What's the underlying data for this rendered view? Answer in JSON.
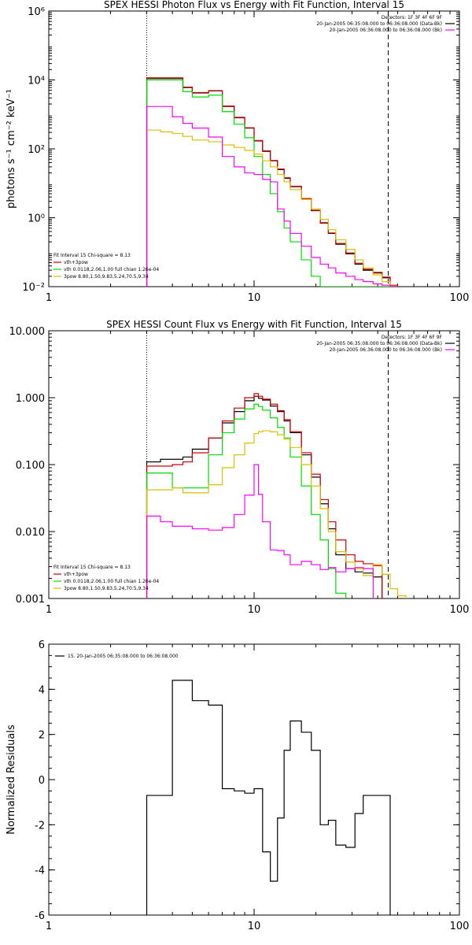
{
  "colors": {
    "data": "#000000",
    "model": "#d40000",
    "thermal": "#00dd00",
    "power": "#dcbf00",
    "background": "#ff00ff"
  },
  "chart_data": [
    {
      "type": "line",
      "title": "SPEX HESSI Photon Flux vs Energy with Fit Function, Interval 15",
      "xlabel": "",
      "ylabel": "photons s⁻¹ cm⁻² keV⁻¹",
      "xscale": "log",
      "yscale": "log",
      "xlim": [
        1,
        100
      ],
      "ylim": [
        0.01,
        1000000
      ],
      "xticks": [
        {
          "v": 1,
          "label": "1"
        },
        {
          "v": 10,
          "label": "10"
        },
        {
          "v": 100,
          "label": "100"
        }
      ],
      "yticks": [
        {
          "v": 0.01,
          "label": "10⁻²"
        },
        {
          "v": 1,
          "label": "10⁰"
        },
        {
          "v": 100,
          "label": "10²"
        },
        {
          "v": 10000,
          "label": "10⁴"
        },
        {
          "v": 1000000,
          "label": "10⁶"
        }
      ],
      "vlines": [
        {
          "x": 3,
          "style": "dotted"
        },
        {
          "x": 45,
          "style": "dashed"
        }
      ],
      "legend_right": [
        "Detectors: 1F 3F 4F 6F 9F",
        "20-Jan-2005 06:35:08.000 to 06:36:08.000 (Data-Bk)",
        "20-Jan-2005 06:36:08.000 to 06:36:08.000 (Bk)"
      ],
      "legend_left": [
        "Fit Interval 15   Chi-square = 8.13",
        "vth+3pow",
        "vth 0.0118,2.06,1.00  full chian 1.26e-04",
        "3pow 8.80,1.50,9.83,5.24,70.5,9.34"
      ],
      "edges": [
        3,
        3.5,
        4,
        4.5,
        5,
        6,
        7,
        8,
        9,
        10,
        11,
        12,
        13,
        14,
        15,
        17,
        19,
        21,
        23,
        25,
        28,
        31,
        34,
        38,
        42,
        46,
        50
      ],
      "series": [
        {
          "name": "data",
          "color": "#000000",
          "values": [
            11000,
            11000,
            11000,
            6000,
            4200,
            4800,
            1700,
            800,
            400,
            170,
            85,
            45,
            25,
            14,
            8,
            3.5,
            1.6,
            0.7,
            0.35,
            0.17,
            0.09,
            0.045,
            0.03,
            0.025,
            0.018,
            0.01
          ]
        },
        {
          "name": "vth+3pow",
          "color": "#d40000",
          "values": [
            11500,
            11500,
            11500,
            6200,
            4300,
            4900,
            1750,
            820,
            410,
            175,
            88,
            46,
            26,
            14.5,
            8.2,
            3.6,
            1.65,
            0.72,
            0.36,
            0.18,
            0.095,
            0.048,
            0.032,
            0.026,
            0.019,
            0.011
          ]
        },
        {
          "name": "vth",
          "color": "#00dd00",
          "values": [
            10000,
            10000,
            10000,
            4600,
            3200,
            3600,
            1200,
            520,
            210,
            60,
            18,
            5,
            1.5,
            0.5,
            0.2,
            0.06,
            0.02,
            0.01,
            0.01,
            0.01,
            0.01,
            0.01,
            0.01,
            0.01,
            0.01,
            0.01
          ]
        },
        {
          "name": "3pow",
          "color": "#dcbf00",
          "values": [
            350,
            310,
            280,
            230,
            180,
            160,
            130,
            110,
            90,
            70,
            45,
            30,
            18,
            11,
            6.5,
            3.4,
            1.8,
            0.9,
            0.45,
            0.23,
            0.12,
            0.06,
            0.035,
            0.022,
            0.014,
            0.009
          ]
        },
        {
          "name": "Bk",
          "color": "#ff00ff",
          "values": [
            1700,
            1700,
            850,
            550,
            400,
            220,
            60,
            30,
            20,
            18,
            13,
            11,
            1.8,
            0.8,
            0.35,
            0.15,
            0.07,
            0.045,
            0.035,
            0.025,
            0.02,
            0.016,
            0.014,
            0.012,
            0.011,
            0.01
          ]
        }
      ]
    },
    {
      "type": "line",
      "title": "SPEX HESSI Count Flux vs Energy with Fit Function, Interval 15",
      "xlabel": "",
      "ylabel": "",
      "xscale": "log",
      "yscale": "log",
      "xlim": [
        1,
        100
      ],
      "ylim": [
        0.001,
        10
      ],
      "xticks": [
        {
          "v": 1,
          "label": "1"
        },
        {
          "v": 10,
          "label": "10"
        },
        {
          "v": 100,
          "label": "100"
        }
      ],
      "yticks": [
        {
          "v": 0.001,
          "label": "0.001"
        },
        {
          "v": 0.01,
          "label": "0.010"
        },
        {
          "v": 0.1,
          "label": "0.100"
        },
        {
          "v": 1,
          "label": "1.000"
        },
        {
          "v": 10,
          "label": "10.000"
        }
      ],
      "vlines": [
        {
          "x": 3,
          "style": "dotted"
        },
        {
          "x": 45,
          "style": "dashed"
        }
      ],
      "legend_right": [
        "Detectors: 1F 3F 4F 6F 9F",
        "20-Jan-2005 06:35:08.000 to 06:36:08.000 (Data-Bk)",
        "20-Jan-2005 06:36:08.000 to 06:36:08.000 (Bk)"
      ],
      "legend_left": [
        "Fit Interval 15   Chi-square = 8.13",
        "vth+3pow",
        "vth 0.0118,2.06,1.00  full chian 1.26e-04",
        "3pow 8.80,1.50,9.83,5.24,70.5,9.34"
      ],
      "edges": [
        3,
        3.5,
        4,
        4.5,
        5,
        6,
        7,
        8,
        9,
        10,
        10.5,
        11,
        12,
        13,
        14,
        15,
        17,
        19,
        21,
        23,
        25,
        28,
        31,
        34,
        38,
        42,
        46,
        50,
        55
      ],
      "series": [
        {
          "name": "data",
          "color": "#000000",
          "values": [
            0.11,
            0.12,
            0.12,
            0.13,
            0.17,
            0.25,
            0.42,
            0.62,
            0.9,
            1.05,
            0.98,
            0.92,
            0.75,
            0.62,
            0.45,
            0.3,
            0.14,
            0.065,
            0.026,
            0.011,
            0.0045,
            0.0028,
            0.0025,
            0.0024,
            0.0021,
            0.0009,
            0.0009,
            0.0009
          ]
        },
        {
          "name": "vth+3pow",
          "color": "#d40000",
          "values": [
            0.095,
            0.095,
            0.1,
            0.11,
            0.15,
            0.25,
            0.45,
            0.7,
            1.0,
            1.15,
            1.05,
            0.95,
            0.8,
            0.64,
            0.47,
            0.31,
            0.15,
            0.072,
            0.03,
            0.014,
            0.0075,
            0.0045,
            0.0036,
            0.0033,
            0.0031,
            0.0009,
            0.0009,
            0.0009
          ]
        },
        {
          "name": "vth",
          "color": "#00dd00",
          "values": [
            0.075,
            0.075,
            0.045,
            0.045,
            0.045,
            0.14,
            0.3,
            0.48,
            0.68,
            0.8,
            0.74,
            0.65,
            0.5,
            0.36,
            0.25,
            0.13,
            0.048,
            0.018,
            0.0075,
            0.0028,
            0.0012,
            0.0009,
            0.0009,
            0.0009,
            0.0009,
            0.0009,
            0.0009,
            0.0009
          ]
        },
        {
          "name": "3pow",
          "color": "#dcbf00",
          "values": [
            0.042,
            0.042,
            0.045,
            0.038,
            0.038,
            0.05,
            0.09,
            0.14,
            0.21,
            0.29,
            0.31,
            0.32,
            0.31,
            0.28,
            0.24,
            0.18,
            0.1,
            0.048,
            0.022,
            0.01,
            0.005,
            0.0035,
            0.0028,
            0.0022,
            0.0032,
            0.0023,
            0.0014,
            0.0011
          ]
        },
        {
          "name": "Bk",
          "color": "#ff00ff",
          "values": [
            0.017,
            0.014,
            0.012,
            0.012,
            0.011,
            0.0105,
            0.0115,
            0.018,
            0.035,
            0.1,
            0.036,
            0.014,
            0.0053,
            0.0052,
            0.0045,
            0.0032,
            0.0036,
            0.0032,
            0.0027,
            0.0029,
            0.0025,
            0.0028,
            0.0029,
            0.0028,
            0.0009,
            0.0009,
            0.0009,
            0.0009
          ]
        }
      ]
    },
    {
      "type": "line",
      "title": "",
      "xlabel": "",
      "ylabel": "Normalized Residuals",
      "xscale": "log",
      "yscale": "linear",
      "xlim": [
        1,
        100
      ],
      "ylim": [
        -6,
        6
      ],
      "xticks": [
        {
          "v": 1,
          "label": "1"
        },
        {
          "v": 10,
          "label": "10"
        },
        {
          "v": 100,
          "label": "100"
        }
      ],
      "yticks": [
        {
          "v": -6,
          "label": "-6"
        },
        {
          "v": -4,
          "label": "-4"
        },
        {
          "v": -2,
          "label": "-2"
        },
        {
          "v": 0,
          "label": "0"
        },
        {
          "v": 2,
          "label": "2"
        },
        {
          "v": 4,
          "label": "4"
        },
        {
          "v": 6,
          "label": "6"
        }
      ],
      "legend_left": [
        "15. 20-Jan-2005 06:35:08.000 to 06:36:08.000"
      ],
      "edges": [
        3,
        4,
        5,
        6,
        7,
        8,
        9,
        10,
        11,
        12,
        13,
        14,
        15,
        17,
        19,
        21,
        23,
        25,
        28,
        31,
        34,
        38,
        42,
        46
      ],
      "series": [
        {
          "name": "residuals",
          "color": "#000000",
          "values": [
            -0.7,
            4.4,
            3.5,
            3.3,
            -0.4,
            -0.5,
            -0.6,
            -0.4,
            -3.2,
            -4.5,
            -1.7,
            1.3,
            2.6,
            2.1,
            1.3,
            -2.0,
            -1.8,
            -2.9,
            -3.0,
            -1.5,
            -0.7,
            -0.7,
            -0.7
          ]
        }
      ],
      "baseline": -6
    }
  ]
}
